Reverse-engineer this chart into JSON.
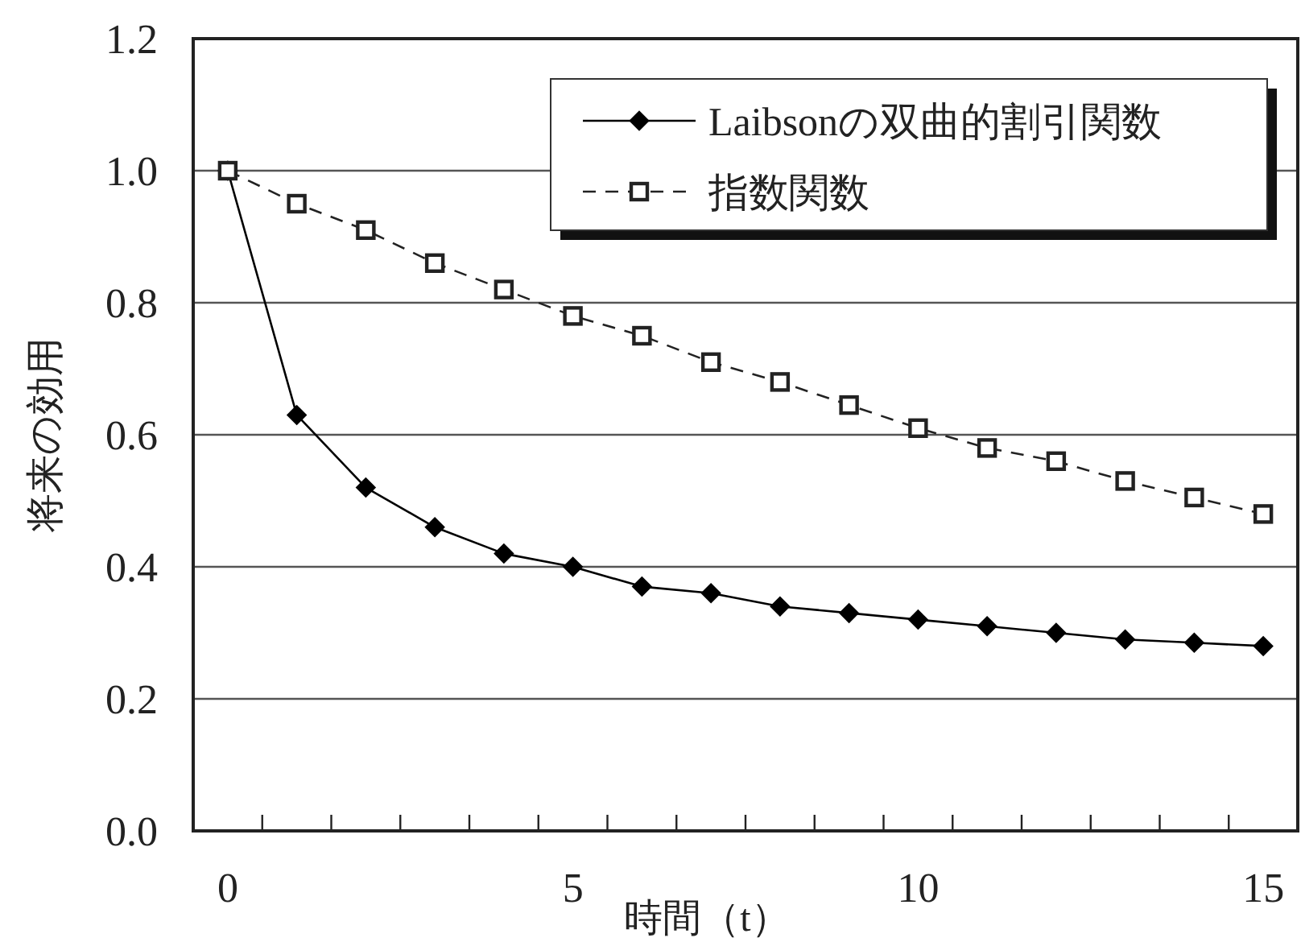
{
  "chart_data": {
    "type": "line",
    "xlabel": "時間（t）",
    "ylabel": "将来の効用",
    "x": [
      0,
      1,
      2,
      3,
      4,
      5,
      6,
      7,
      8,
      9,
      10,
      11,
      12,
      13,
      14,
      15
    ],
    "series": [
      {
        "name": "Laibsonの双曲的割引関数",
        "color": "#000000",
        "marker": "diamond",
        "line_style": "solid",
        "values": [
          1.0,
          0.63,
          0.52,
          0.46,
          0.42,
          0.4,
          0.37,
          0.36,
          0.34,
          0.33,
          0.32,
          0.31,
          0.3,
          0.29,
          0.285,
          0.28
        ]
      },
      {
        "name": "指数関数",
        "color": "#222222",
        "marker": "square",
        "line_style": "dashed",
        "values": [
          1.0,
          0.95,
          0.91,
          0.86,
          0.82,
          0.78,
          0.75,
          0.71,
          0.68,
          0.645,
          0.61,
          0.58,
          0.56,
          0.53,
          0.505,
          0.48
        ]
      }
    ],
    "xlim": [
      -0.5,
      15.5
    ],
    "xticks": [
      0,
      5,
      10,
      15,
      {
        "value": 0.5,
        "label": null
      },
      {
        "value": 1.5,
        "label": null
      },
      {
        "value": 2.5,
        "label": null
      },
      {
        "value": 3.5,
        "label": null
      },
      {
        "value": 4.5,
        "label": null
      },
      {
        "value": 5.5,
        "label": null
      },
      {
        "value": 6.5,
        "label": null
      },
      {
        "value": 7.5,
        "label": null
      },
      {
        "value": 8.5,
        "label": null
      },
      {
        "value": 9.5,
        "label": null
      },
      {
        "value": 10.5,
        "label": null
      },
      {
        "value": 11.5,
        "label": null
      },
      {
        "value": 12.5,
        "label": null
      },
      {
        "value": 13.5,
        "label": null
      },
      {
        "value": 14.5,
        "label": null
      }
    ],
    "ylim": [
      0,
      1.2
    ],
    "yticks": [
      {
        "value": 0,
        "label": "0.0"
      },
      {
        "value": 0.2,
        "label": "0.2"
      },
      {
        "value": 0.4,
        "label": "0.4"
      },
      {
        "value": 0.6,
        "label": "0.6"
      },
      {
        "value": 0.8,
        "label": "0.8"
      },
      {
        "value": 1.0,
        "label": "1.0"
      },
      {
        "value": 1.2,
        "label": "1.2"
      }
    ],
    "grid": "y",
    "legend": "top right"
  }
}
